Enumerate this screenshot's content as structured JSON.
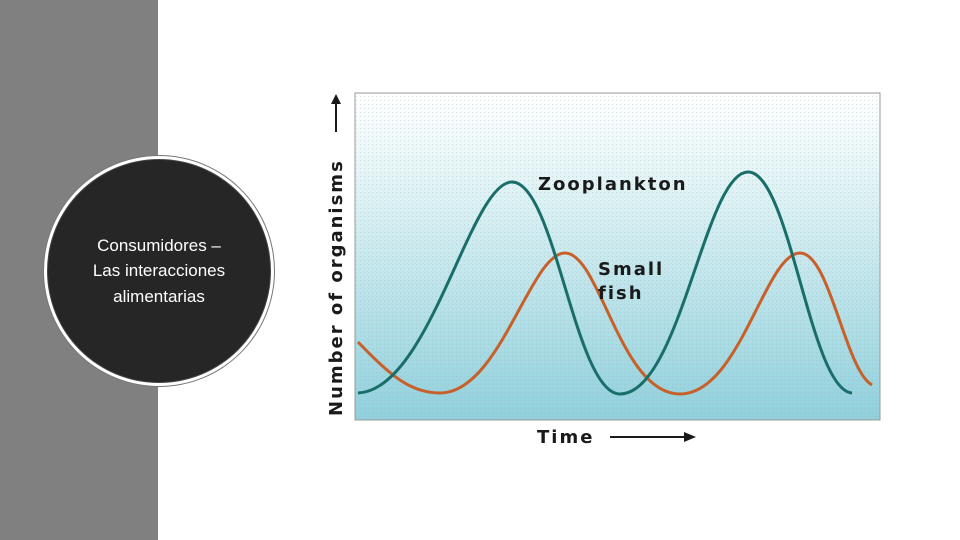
{
  "slide": {
    "title": "Consumidores – Las interacciones alimentarias"
  },
  "figure": {
    "y_label": "Number of organisms",
    "x_label": "Time",
    "zooplankton_label": "Zooplankton",
    "fish_label": [
      "Small",
      "fish"
    ]
  }
}
